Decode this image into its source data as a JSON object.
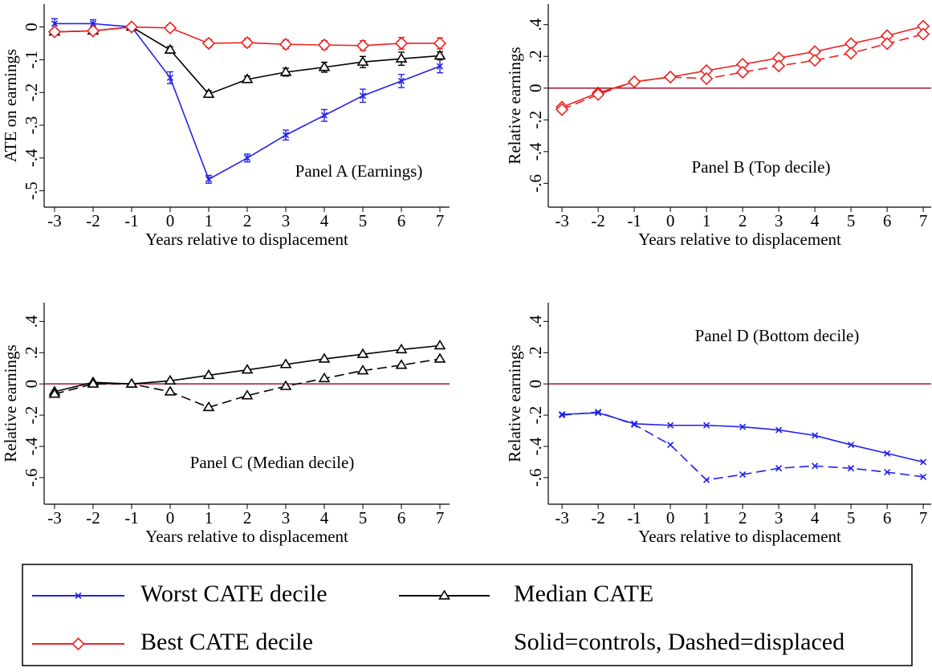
{
  "chart_data": [
    {
      "type": "line",
      "annotation": "Panel A (Earnings)",
      "ylabel": "ATE on earnings",
      "xlabel": "Years relative to displacement",
      "x": [
        -3,
        -2,
        -1,
        0,
        1,
        2,
        3,
        4,
        5,
        6,
        7
      ],
      "xlim": [
        -3.27,
        7.25
      ],
      "xticks": [
        -3,
        -2,
        -1,
        0,
        1,
        2,
        3,
        4,
        5,
        6,
        7
      ],
      "ylim": [
        -0.55,
        0.07
      ],
      "yticks": [
        0,
        {
          "value": -0.1,
          "label": "-.1"
        },
        {
          "value": -0.2,
          "label": "-.2"
        },
        {
          "value": -0.3,
          "label": "-.3"
        },
        {
          "value": -0.4,
          "label": "-.4"
        },
        {
          "value": -0.5,
          "label": "-.5"
        }
      ],
      "series": [
        {
          "name": "Worst CATE decile",
          "color": "#2222ee",
          "marker": "x",
          "style": "solid",
          "values": [
            0.01,
            0.01,
            0,
            -0.155,
            -0.465,
            -0.4,
            -0.33,
            -0.27,
            -0.21,
            -0.165,
            -0.12
          ],
          "errors": [
            0.015,
            0.012,
            0,
            0.018,
            0.012,
            0.012,
            0.015,
            0.018,
            0.02,
            0.02,
            0.02
          ]
        },
        {
          "name": "Median CATE",
          "color": "#000000",
          "marker": "triangle",
          "style": "solid",
          "values": [
            -0.015,
            -0.012,
            0,
            -0.07,
            -0.205,
            -0.16,
            -0.138,
            -0.123,
            -0.107,
            -0.097,
            -0.088
          ],
          "errors": [
            0.008,
            0.008,
            0,
            0.01,
            0.01,
            0.01,
            0.012,
            0.015,
            0.017,
            0.02,
            0.012
          ]
        },
        {
          "name": "Best CATE decile",
          "color": "#ee2222",
          "marker": "diamond",
          "style": "solid",
          "values": [
            -0.015,
            -0.012,
            0,
            -0.003,
            -0.05,
            -0.048,
            -0.053,
            -0.055,
            -0.057,
            -0.05,
            -0.05
          ],
          "errors": [
            0.01,
            0.01,
            0,
            0.01,
            0.012,
            0.013,
            0.013,
            0.013,
            0.015,
            0.018,
            0.017
          ]
        }
      ]
    },
    {
      "type": "line",
      "annotation": "Panel B (Top decile)",
      "ylabel": "Relative earnings",
      "xlabel": "Years relative to displacement",
      "x": [
        -3,
        -2,
        -1,
        0,
        1,
        2,
        3,
        4,
        5,
        6,
        7
      ],
      "xlim": [
        -3.38,
        7.22
      ],
      "xticks": [
        -3,
        -2,
        -1,
        0,
        1,
        2,
        3,
        4,
        5,
        6,
        7
      ],
      "ylim": [
        -0.75,
        0.53
      ],
      "yticks": [
        {
          "value": 0.4,
          "label": ".4"
        },
        {
          "value": 0.2,
          "label": ".2"
        },
        0,
        {
          "value": -0.2,
          "label": "-.2"
        },
        {
          "value": -0.4,
          "label": "-.4"
        },
        {
          "value": -0.6,
          "label": "-.6"
        }
      ],
      "refline": 0,
      "refline_color": "#a0172f",
      "series": [
        {
          "color": "#ee2222",
          "marker": "diamond",
          "style": "solid",
          "values": [
            -0.12,
            -0.03,
            0.04,
            0.07,
            0.11,
            0.15,
            0.19,
            0.23,
            0.28,
            0.33,
            0.39
          ]
        },
        {
          "color": "#ee2222",
          "marker": "diamond",
          "style": "dashed",
          "values": [
            -0.135,
            -0.04,
            0.04,
            0.07,
            0.06,
            0.1,
            0.14,
            0.175,
            0.22,
            0.28,
            0.34
          ]
        }
      ]
    },
    {
      "type": "line",
      "annotation": "Panel C (Median decile)",
      "ylabel": "Relative earnings",
      "xlabel": "Years relative to displacement",
      "x": [
        -3,
        -2,
        -1,
        0,
        1,
        2,
        3,
        4,
        5,
        6,
        7
      ],
      "xlim": [
        -3.27,
        7.25
      ],
      "xticks": [
        -3,
        -2,
        -1,
        0,
        1,
        2,
        3,
        4,
        5,
        6,
        7
      ],
      "ylim": [
        -0.77,
        0.52
      ],
      "yticks": [
        {
          "value": 0.4,
          "label": ".4"
        },
        {
          "value": 0.2,
          "label": ".2"
        },
        0,
        {
          "value": -0.2,
          "label": "-.2"
        },
        {
          "value": -0.4,
          "label": "-.4"
        },
        {
          "value": -0.6,
          "label": "-.6"
        }
      ],
      "refline": 0,
      "refline_color": "#a0172f",
      "series": [
        {
          "color": "#000000",
          "marker": "triangle",
          "style": "solid",
          "values": [
            -0.05,
            0.01,
            0,
            0.02,
            0.055,
            0.09,
            0.125,
            0.16,
            0.19,
            0.22,
            0.245
          ]
        },
        {
          "color": "#000000",
          "marker": "triangle",
          "style": "dashed",
          "values": [
            -0.065,
            0,
            0,
            -0.05,
            -0.15,
            -0.075,
            -0.015,
            0.035,
            0.085,
            0.12,
            0.16
          ]
        }
      ]
    },
    {
      "type": "line",
      "annotation": "Panel D (Bottom decile)",
      "ylabel": "Relative earnings",
      "xlabel": "Years relative to displacement",
      "x": [
        -3,
        -2,
        -1,
        0,
        1,
        2,
        3,
        4,
        5,
        6,
        7
      ],
      "xlim": [
        -3.38,
        7.22
      ],
      "xticks": [
        -3,
        -2,
        -1,
        0,
        1,
        2,
        3,
        4,
        5,
        6,
        7
      ],
      "ylim": [
        -0.77,
        0.52
      ],
      "yticks": [
        {
          "value": 0.4,
          "label": ".4"
        },
        {
          "value": 0.2,
          "label": ".2"
        },
        0,
        {
          "value": -0.2,
          "label": "-.2"
        },
        {
          "value": -0.4,
          "label": "-.4"
        },
        {
          "value": -0.6,
          "label": "-.6"
        }
      ],
      "refline": 0,
      "refline_color": "#a0172f",
      "series": [
        {
          "color": "#2222ee",
          "marker": "x",
          "style": "solid",
          "values": [
            -0.195,
            -0.185,
            -0.255,
            -0.265,
            -0.265,
            -0.275,
            -0.295,
            -0.33,
            -0.39,
            -0.445,
            -0.5
          ]
        },
        {
          "color": "#2222ee",
          "marker": "x",
          "style": "dashed",
          "values": [
            -0.2,
            -0.18,
            -0.26,
            -0.39,
            -0.615,
            -0.58,
            -0.54,
            -0.525,
            -0.54,
            -0.565,
            -0.595
          ]
        }
      ]
    }
  ],
  "legend_note": "Solid=controls, Dashed=displaced"
}
